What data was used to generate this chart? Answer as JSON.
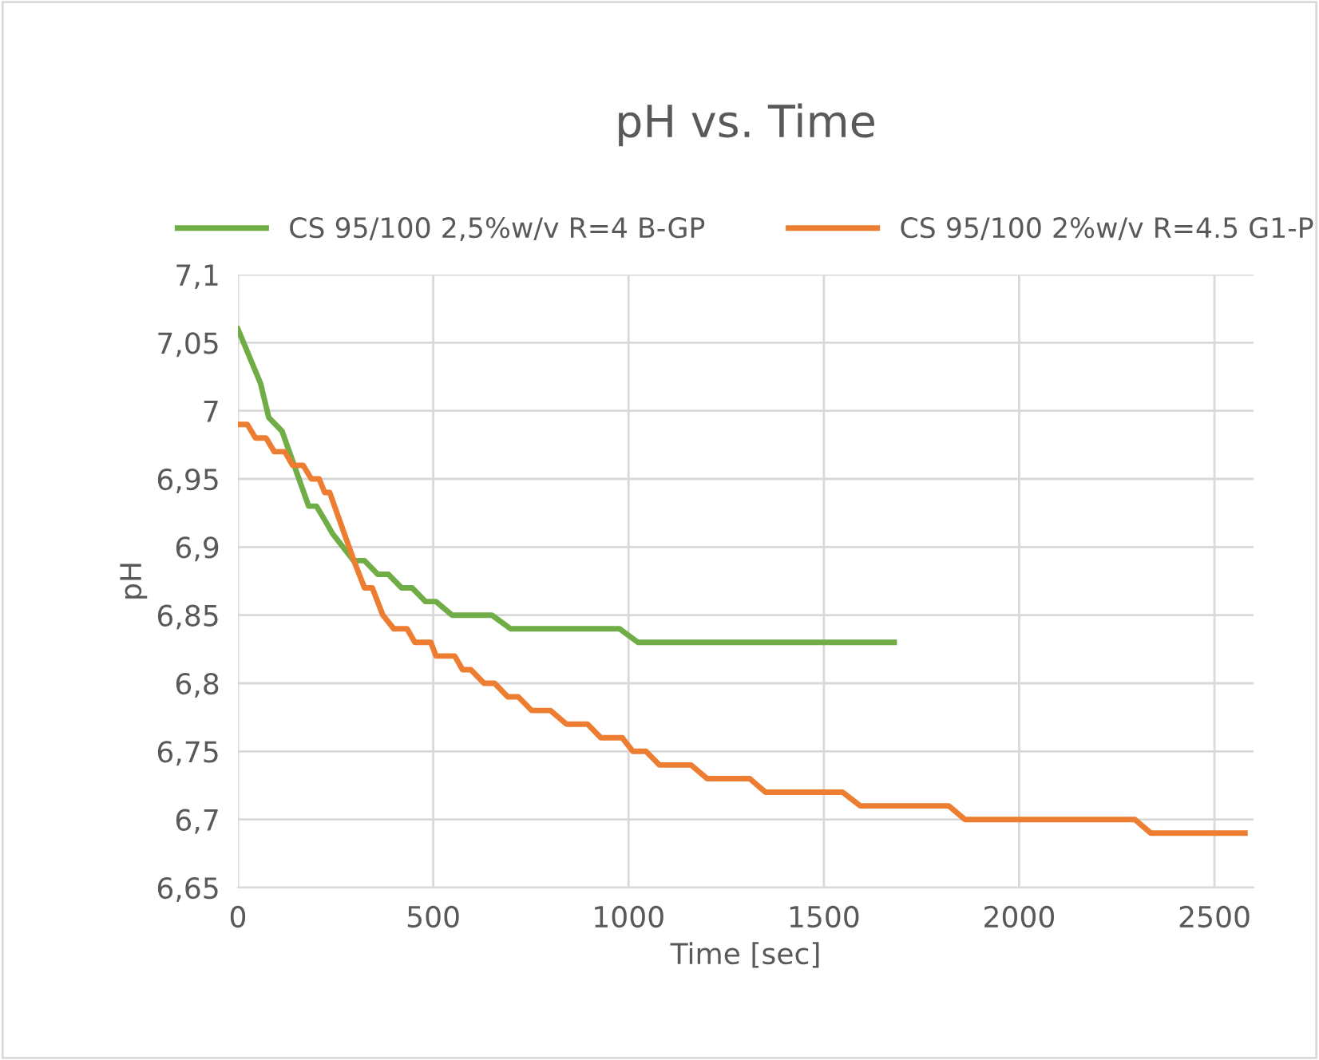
{
  "chart_data": {
    "type": "line",
    "title": "pH vs. Time",
    "xlabel": "Time [sec]",
    "ylabel": "pH",
    "xlim": [
      0,
      2600
    ],
    "xticks": [
      0,
      500,
      1000,
      1500,
      2000,
      2500
    ],
    "ylim": [
      6.65,
      7.1
    ],
    "yticks": [
      {
        "value": 6.65,
        "label": "6,65"
      },
      {
        "value": 6.7,
        "label": "6,7"
      },
      {
        "value": 6.75,
        "label": "6,75"
      },
      {
        "value": 6.8,
        "label": "6,8"
      },
      {
        "value": 6.85,
        "label": "6,85"
      },
      {
        "value": 6.9,
        "label": "6,9"
      },
      {
        "value": 6.95,
        "label": "6,95"
      },
      {
        "value": 7.0,
        "label": "7"
      },
      {
        "value": 7.05,
        "label": "7,05"
      },
      {
        "value": 7.1,
        "label": "7,1"
      }
    ],
    "grid": true,
    "legend": "top",
    "marker": "none",
    "line_style": "solid",
    "series": [
      {
        "name": "CS 95/100 2,5%w/v R=4 B-GP",
        "color": "#70ad47",
        "x": [
          0,
          58,
          79,
          113,
          181,
          201,
          222,
          242,
          296,
          324,
          358,
          385,
          419,
          446,
          480,
          507,
          548,
          650,
          698,
          977,
          1024,
          1680
        ],
        "values": [
          7.06,
          7.02,
          6.995,
          6.985,
          6.93,
          6.93,
          6.92,
          6.91,
          6.89,
          6.89,
          6.88,
          6.88,
          6.87,
          6.87,
          6.86,
          6.86,
          6.85,
          6.85,
          6.84,
          6.84,
          6.83,
          6.83
        ]
      },
      {
        "name": "CS 95/100 2%w/v R=4.5 G1-P",
        "color": "#ed7d31",
        "x": [
          0,
          24,
          45,
          72,
          93,
          120,
          140,
          167,
          188,
          208,
          222,
          235,
          297,
          324,
          344,
          371,
          399,
          433,
          453,
          494,
          507,
          555,
          575,
          596,
          630,
          657,
          691,
          718,
          752,
          800,
          841,
          895,
          929,
          984,
          1011,
          1045,
          1079,
          1160,
          1201,
          1310,
          1351,
          1548,
          1593,
          1820,
          1861,
          2296,
          2337,
          2578
        ],
        "values": [
          6.99,
          6.99,
          6.98,
          6.98,
          6.97,
          6.97,
          6.96,
          6.96,
          6.95,
          6.95,
          6.94,
          6.94,
          6.89,
          6.87,
          6.87,
          6.85,
          6.84,
          6.84,
          6.83,
          6.83,
          6.82,
          6.82,
          6.81,
          6.81,
          6.8,
          6.8,
          6.79,
          6.79,
          6.78,
          6.78,
          6.77,
          6.77,
          6.76,
          6.76,
          6.75,
          6.75,
          6.74,
          6.74,
          6.73,
          6.73,
          6.72,
          6.72,
          6.71,
          6.71,
          6.7,
          6.7,
          6.69,
          6.69
        ]
      }
    ]
  }
}
